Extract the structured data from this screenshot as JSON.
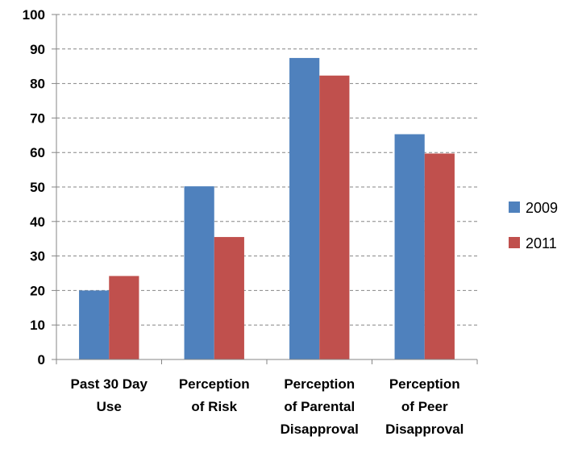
{
  "chart_data": {
    "type": "bar",
    "title": "",
    "xlabel": "",
    "ylabel": "",
    "categories": [
      [
        "Past 30 Day",
        "Use"
      ],
      [
        "Perception",
        "of Risk"
      ],
      [
        "Perception",
        "of Parental",
        "Disapproval"
      ],
      [
        "Perception",
        "of Peer",
        "Disapproval"
      ]
    ],
    "series": [
      {
        "name": "2009",
        "color": "#4F81BD",
        "values": [
          20,
          50.2,
          87.4,
          65.3
        ]
      },
      {
        "name": "2011",
        "color": "#C0504D",
        "values": [
          24.2,
          35.5,
          82.3,
          59.7
        ]
      }
    ],
    "ylim": [
      0,
      100
    ],
    "yticks": [
      0,
      10,
      20,
      30,
      40,
      50,
      60,
      70,
      80,
      90,
      100
    ],
    "grid": true,
    "grid_style": "dashed",
    "legend_position": "right"
  }
}
